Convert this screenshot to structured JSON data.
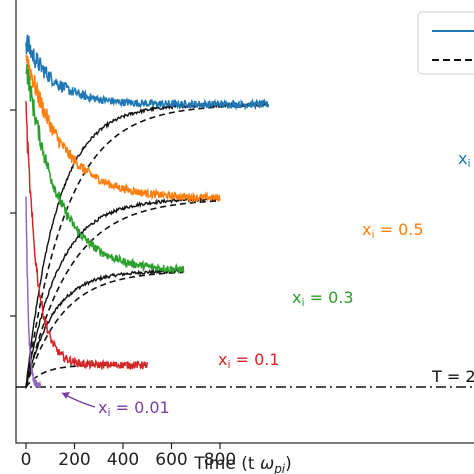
{
  "chart_data": {
    "type": "line",
    "title": "",
    "xlabel": "Time (t ωpi)",
    "xlabel_main": "Time (t ",
    "xlabel_omega": "ω",
    "xlabel_sub": "pi",
    "xlabel_close": ")",
    "xlim": [
      -25,
      1000
    ],
    "ylim": [
      0,
      1.05
    ],
    "x_ticks": [
      0,
      200,
      400,
      600,
      800
    ],
    "x_tick_labels": [
      "0",
      "200",
      "400",
      "600",
      "800"
    ],
    "grid": false,
    "legend": {
      "placement": "top-right",
      "entries": [
        "solid",
        "dashed"
      ]
    },
    "baseline": {
      "y": 0.0,
      "style": "dash-dot",
      "label": "T = 2"
    },
    "series": [
      {
        "name": "xi = 0.01",
        "color": "#9467bd",
        "x_end": 60,
        "peak": 0.59,
        "final": 0.0,
        "decay": 10
      },
      {
        "name": "xi = 0.1",
        "color": "#d62728",
        "x_end": 500,
        "peak": 0.88,
        "final": 0.07,
        "decay": 45
      },
      {
        "name": "xi = 0.3",
        "color": "#2ca02c",
        "x_end": 650,
        "peak": 1.03,
        "final": 0.37,
        "decay": 130
      },
      {
        "name": "xi = 0.5",
        "color": "#ff7f0e",
        "x_end": 800,
        "peak": 1.06,
        "final": 0.6,
        "decay": 150
      },
      {
        "name": "xi",
        "color": "#1f77b4",
        "x_end": 1000,
        "peak": 1.1,
        "final": 0.9,
        "decay": 120
      }
    ],
    "dashed_series": [
      {
        "x_end": 500,
        "final": 0.07,
        "rise": 70
      },
      {
        "x_end": 650,
        "final": 0.37,
        "rise": 150
      },
      {
        "x_end": 800,
        "final": 0.6,
        "rise": 180
      },
      {
        "x_end": 1000,
        "final": 0.9,
        "rise": 170
      }
    ],
    "annotations": [
      {
        "label": "xi",
        "text_main": "x",
        "text_sub": "i",
        "text_rest": "",
        "color": "#1f77b4"
      },
      {
        "label": "xi = 0.5",
        "text_main": "x",
        "text_sub": "i",
        "text_rest": " = 0.5",
        "color": "#ff7f0e"
      },
      {
        "label": "xi = 0.3",
        "text_main": "x",
        "text_sub": "i",
        "text_rest": " = 0.3",
        "color": "#2ca02c"
      },
      {
        "label": "xi = 0.1",
        "text_main": "x",
        "text_sub": "i",
        "text_rest": " = 0.1",
        "color": "#d62728"
      },
      {
        "label": "xi = 0.01",
        "text_main": "x",
        "text_sub": "i",
        "text_rest": " = 0.01",
        "color": "#7b3fa0"
      },
      {
        "label": "T = 2",
        "text_main": "T = 2",
        "text_sub": "",
        "text_rest": "",
        "color": "#111111"
      }
    ]
  }
}
